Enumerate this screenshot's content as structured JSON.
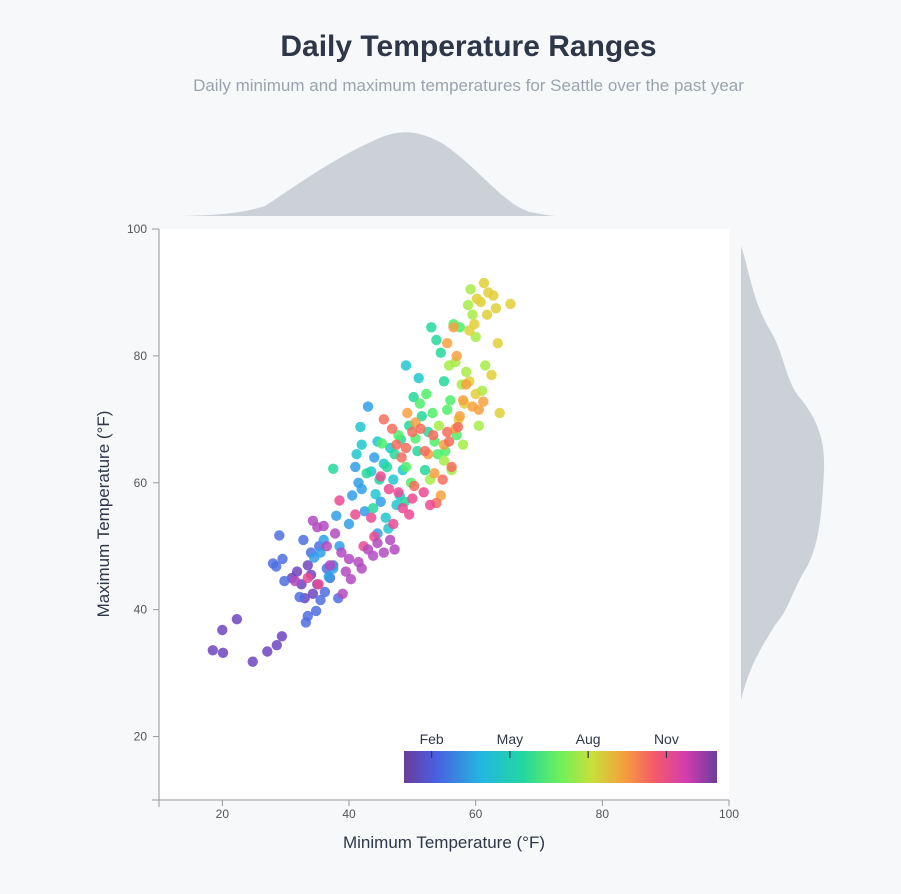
{
  "header": {
    "title": "Daily Temperature Ranges",
    "subtitle": "Daily minimum and maximum temperatures for Seattle over the past year"
  },
  "colors": {
    "background": "#f7f8fa",
    "plot_background": "#ffffff",
    "density": "#cbd1d7",
    "axis": "#999999"
  },
  "color_legend": {
    "scale": "month-of-year (cyclic rainbow)",
    "labels": [
      "Feb",
      "May",
      "Aug",
      "Nov"
    ]
  },
  "chart_data": {
    "type": "scatter",
    "title": "Daily Temperature Ranges",
    "subtitle": "Daily minimum and maximum temperatures for Seattle over the past year",
    "xlabel": "Minimum Temperature (°F)",
    "ylabel": "Maximum Temperature (°F)",
    "xlim": [
      10,
      100
    ],
    "ylim": [
      10,
      100
    ],
    "x_ticks": [
      20,
      40,
      60,
      80,
      100
    ],
    "y_ticks": [
      20,
      40,
      60,
      80,
      100
    ],
    "marginal_densities": [
      "top (min temperature)",
      "right (max temperature)"
    ],
    "color_encoding": "month",
    "grid": false,
    "points": [
      {
        "x": 18.5,
        "y": 33.6,
        "month": 1
      },
      {
        "x": 20.1,
        "y": 33.2,
        "month": 1
      },
      {
        "x": 20.0,
        "y": 36.8,
        "month": 1
      },
      {
        "x": 22.3,
        "y": 38.5,
        "month": 1
      },
      {
        "x": 24.8,
        "y": 31.8,
        "month": 1
      },
      {
        "x": 27.1,
        "y": 33.4,
        "month": 1
      },
      {
        "x": 28.6,
        "y": 34.4,
        "month": 1
      },
      {
        "x": 29.4,
        "y": 35.8,
        "month": 1
      },
      {
        "x": 31.0,
        "y": 45.0,
        "month": 1
      },
      {
        "x": 31.8,
        "y": 46.0,
        "month": 1
      },
      {
        "x": 32.5,
        "y": 44.0,
        "month": 1
      },
      {
        "x": 33.5,
        "y": 47.0,
        "month": 1
      },
      {
        "x": 34.0,
        "y": 45.5,
        "month": 1
      },
      {
        "x": 35.0,
        "y": 44.0,
        "month": 1
      },
      {
        "x": 33.0,
        "y": 41.8,
        "month": 1
      },
      {
        "x": 34.3,
        "y": 42.5,
        "month": 1
      },
      {
        "x": 28.0,
        "y": 47.3,
        "month": 2
      },
      {
        "x": 28.5,
        "y": 46.8,
        "month": 2
      },
      {
        "x": 29.0,
        "y": 51.7,
        "month": 2
      },
      {
        "x": 29.5,
        "y": 48.0,
        "month": 2
      },
      {
        "x": 29.8,
        "y": 44.5,
        "month": 2
      },
      {
        "x": 32.2,
        "y": 42.0,
        "month": 2
      },
      {
        "x": 33.2,
        "y": 38.0,
        "month": 2
      },
      {
        "x": 33.5,
        "y": 39.0,
        "month": 2
      },
      {
        "x": 34.8,
        "y": 39.8,
        "month": 2
      },
      {
        "x": 35.5,
        "y": 41.5,
        "month": 2
      },
      {
        "x": 36.2,
        "y": 42.8,
        "month": 2
      },
      {
        "x": 37.0,
        "y": 45.0,
        "month": 2
      },
      {
        "x": 37.5,
        "y": 47.0,
        "month": 2
      },
      {
        "x": 38.3,
        "y": 41.8,
        "month": 2
      },
      {
        "x": 32.8,
        "y": 51.0,
        "month": 2
      },
      {
        "x": 34.0,
        "y": 49.0,
        "month": 2
      },
      {
        "x": 35.3,
        "y": 50.0,
        "month": 2
      },
      {
        "x": 36.5,
        "y": 46.5,
        "month": 2
      },
      {
        "x": 34.5,
        "y": 48.2,
        "month": 3
      },
      {
        "x": 35.5,
        "y": 49.0,
        "month": 3
      },
      {
        "x": 36.0,
        "y": 51.0,
        "month": 3
      },
      {
        "x": 37.5,
        "y": 46.5,
        "month": 3
      },
      {
        "x": 38.0,
        "y": 54.8,
        "month": 3
      },
      {
        "x": 40.5,
        "y": 58.0,
        "month": 3
      },
      {
        "x": 41.0,
        "y": 62.5,
        "month": 3
      },
      {
        "x": 43.0,
        "y": 72.0,
        "month": 3
      },
      {
        "x": 44.0,
        "y": 64.0,
        "month": 3
      },
      {
        "x": 45.0,
        "y": 57.0,
        "month": 3
      },
      {
        "x": 42.0,
        "y": 59.0,
        "month": 3
      },
      {
        "x": 38.5,
        "y": 50.0,
        "month": 3
      },
      {
        "x": 40.0,
        "y": 53.5,
        "month": 3
      },
      {
        "x": 42.5,
        "y": 55.5,
        "month": 3
      },
      {
        "x": 44.5,
        "y": 52.0,
        "month": 3
      },
      {
        "x": 36.8,
        "y": 45.2,
        "month": 3
      },
      {
        "x": 41.5,
        "y": 60.0,
        "month": 3
      },
      {
        "x": 41.2,
        "y": 64.5,
        "month": 4
      },
      {
        "x": 42.0,
        "y": 66.0,
        "month": 4
      },
      {
        "x": 43.5,
        "y": 61.8,
        "month": 4
      },
      {
        "x": 44.5,
        "y": 66.5,
        "month": 4
      },
      {
        "x": 45.5,
        "y": 63.0,
        "month": 4
      },
      {
        "x": 46.5,
        "y": 65.5,
        "month": 4
      },
      {
        "x": 47.0,
        "y": 60.5,
        "month": 4
      },
      {
        "x": 48.0,
        "y": 58.0,
        "month": 4
      },
      {
        "x": 49.0,
        "y": 78.5,
        "month": 4
      },
      {
        "x": 51.0,
        "y": 76.5,
        "month": 4
      },
      {
        "x": 41.8,
        "y": 68.8,
        "month": 4
      },
      {
        "x": 44.2,
        "y": 58.2,
        "month": 4
      },
      {
        "x": 45.8,
        "y": 54.5,
        "month": 4
      },
      {
        "x": 46.2,
        "y": 52.8,
        "month": 4
      },
      {
        "x": 47.5,
        "y": 56.5,
        "month": 4
      },
      {
        "x": 48.5,
        "y": 62.0,
        "month": 4
      },
      {
        "x": 37.5,
        "y": 62.2,
        "month": 5
      },
      {
        "x": 42.8,
        "y": 61.5,
        "month": 5
      },
      {
        "x": 43.8,
        "y": 56.0,
        "month": 5
      },
      {
        "x": 44.8,
        "y": 60.5,
        "month": 5
      },
      {
        "x": 46.0,
        "y": 62.5,
        "month": 5
      },
      {
        "x": 47.2,
        "y": 64.5,
        "month": 5
      },
      {
        "x": 48.2,
        "y": 66.8,
        "month": 5
      },
      {
        "x": 49.5,
        "y": 69.0,
        "month": 5
      },
      {
        "x": 50.2,
        "y": 73.5,
        "month": 5
      },
      {
        "x": 51.5,
        "y": 70.5,
        "month": 5
      },
      {
        "x": 52.5,
        "y": 68.0,
        "month": 5
      },
      {
        "x": 53.0,
        "y": 84.5,
        "month": 5
      },
      {
        "x": 53.8,
        "y": 82.5,
        "month": 5
      },
      {
        "x": 54.5,
        "y": 80.5,
        "month": 5
      },
      {
        "x": 55.0,
        "y": 76.0,
        "month": 5
      },
      {
        "x": 50.8,
        "y": 65.0,
        "month": 5
      },
      {
        "x": 52.0,
        "y": 62.0,
        "month": 5
      },
      {
        "x": 48.8,
        "y": 57.0,
        "month": 5
      },
      {
        "x": 45.2,
        "y": 66.2,
        "month": 6
      },
      {
        "x": 47.8,
        "y": 67.5,
        "month": 6
      },
      {
        "x": 49.0,
        "y": 62.5,
        "month": 6
      },
      {
        "x": 49.8,
        "y": 60.0,
        "month": 6
      },
      {
        "x": 50.5,
        "y": 67.0,
        "month": 6
      },
      {
        "x": 51.2,
        "y": 72.5,
        "month": 6
      },
      {
        "x": 52.2,
        "y": 74.0,
        "month": 6
      },
      {
        "x": 53.2,
        "y": 71.0,
        "month": 6
      },
      {
        "x": 54.0,
        "y": 64.5,
        "month": 6
      },
      {
        "x": 55.5,
        "y": 71.5,
        "month": 6
      },
      {
        "x": 56.0,
        "y": 73.0,
        "month": 6
      },
      {
        "x": 57.0,
        "y": 67.5,
        "month": 6
      },
      {
        "x": 56.5,
        "y": 85.0,
        "month": 6
      },
      {
        "x": 57.5,
        "y": 84.5,
        "month": 6
      },
      {
        "x": 53.5,
        "y": 66.5,
        "month": 6
      },
      {
        "x": 55.2,
        "y": 65.0,
        "month": 6
      },
      {
        "x": 52.8,
        "y": 60.5,
        "month": 7
      },
      {
        "x": 54.2,
        "y": 69.0,
        "month": 7
      },
      {
        "x": 55.8,
        "y": 78.5,
        "month": 7
      },
      {
        "x": 56.8,
        "y": 79.0,
        "month": 7
      },
      {
        "x": 57.8,
        "y": 75.5,
        "month": 7
      },
      {
        "x": 58.5,
        "y": 77.5,
        "month": 7
      },
      {
        "x": 58.8,
        "y": 88.0,
        "month": 7
      },
      {
        "x": 59.2,
        "y": 90.5,
        "month": 7
      },
      {
        "x": 60.0,
        "y": 83.0,
        "month": 7
      },
      {
        "x": 60.5,
        "y": 69.0,
        "month": 7
      },
      {
        "x": 61.0,
        "y": 74.5,
        "month": 7
      },
      {
        "x": 61.5,
        "y": 78.5,
        "month": 7
      },
      {
        "x": 55.0,
        "y": 63.5,
        "month": 7
      },
      {
        "x": 58.0,
        "y": 66.0,
        "month": 7
      },
      {
        "x": 59.5,
        "y": 86.5,
        "month": 7
      },
      {
        "x": 56.2,
        "y": 62.0,
        "month": 7
      },
      {
        "x": 57.3,
        "y": 70.0,
        "month": 8
      },
      {
        "x": 58.2,
        "y": 72.5,
        "month": 8
      },
      {
        "x": 59.0,
        "y": 84.0,
        "month": 8
      },
      {
        "x": 59.8,
        "y": 85.0,
        "month": 8
      },
      {
        "x": 60.2,
        "y": 89.0,
        "month": 8
      },
      {
        "x": 60.8,
        "y": 88.5,
        "month": 8
      },
      {
        "x": 61.3,
        "y": 91.5,
        "month": 8
      },
      {
        "x": 62.0,
        "y": 90.0,
        "month": 8
      },
      {
        "x": 62.8,
        "y": 89.5,
        "month": 8
      },
      {
        "x": 63.2,
        "y": 87.5,
        "month": 8
      },
      {
        "x": 63.5,
        "y": 82.0,
        "month": 8
      },
      {
        "x": 63.8,
        "y": 71.0,
        "month": 8
      },
      {
        "x": 65.5,
        "y": 88.2,
        "month": 8
      },
      {
        "x": 61.8,
        "y": 86.5,
        "month": 8
      },
      {
        "x": 60.0,
        "y": 74.0,
        "month": 8
      },
      {
        "x": 59.0,
        "y": 76.0,
        "month": 8
      },
      {
        "x": 62.5,
        "y": 77.0,
        "month": 8
      },
      {
        "x": 55.5,
        "y": 82.0,
        "month": 9
      },
      {
        "x": 56.5,
        "y": 84.5,
        "month": 9
      },
      {
        "x": 57.0,
        "y": 80.0,
        "month": 9
      },
      {
        "x": 58.0,
        "y": 73.0,
        "month": 9
      },
      {
        "x": 58.5,
        "y": 75.5,
        "month": 9
      },
      {
        "x": 59.5,
        "y": 72.0,
        "month": 9
      },
      {
        "x": 60.5,
        "y": 71.5,
        "month": 9
      },
      {
        "x": 61.2,
        "y": 72.8,
        "month": 9
      },
      {
        "x": 57.5,
        "y": 70.5,
        "month": 9
      },
      {
        "x": 56.8,
        "y": 68.5,
        "month": 9
      },
      {
        "x": 55.0,
        "y": 66.0,
        "month": 9
      },
      {
        "x": 53.5,
        "y": 61.5,
        "month": 9
      },
      {
        "x": 52.5,
        "y": 64.5,
        "month": 9
      },
      {
        "x": 54.5,
        "y": 58.0,
        "month": 9
      },
      {
        "x": 50.5,
        "y": 69.5,
        "month": 9
      },
      {
        "x": 49.2,
        "y": 71.0,
        "month": 9
      },
      {
        "x": 45.5,
        "y": 70.0,
        "month": 10
      },
      {
        "x": 46.8,
        "y": 68.5,
        "month": 10
      },
      {
        "x": 47.5,
        "y": 66.0,
        "month": 10
      },
      {
        "x": 48.3,
        "y": 64.0,
        "month": 10
      },
      {
        "x": 49.0,
        "y": 65.5,
        "month": 10
      },
      {
        "x": 50.0,
        "y": 68.0,
        "month": 10
      },
      {
        "x": 51.3,
        "y": 68.5,
        "month": 10
      },
      {
        "x": 52.0,
        "y": 65.0,
        "month": 10
      },
      {
        "x": 53.3,
        "y": 67.5,
        "month": 10
      },
      {
        "x": 55.5,
        "y": 68.0,
        "month": 10
      },
      {
        "x": 57.2,
        "y": 68.8,
        "month": 10
      },
      {
        "x": 56.2,
        "y": 62.5,
        "month": 10
      },
      {
        "x": 55.8,
        "y": 66.5,
        "month": 10
      },
      {
        "x": 54.8,
        "y": 60.5,
        "month": 10
      },
      {
        "x": 53.8,
        "y": 56.8,
        "month": 10
      },
      {
        "x": 50.3,
        "y": 59.5,
        "month": 10
      },
      {
        "x": 38.5,
        "y": 57.2,
        "month": 11
      },
      {
        "x": 41.0,
        "y": 55.0,
        "month": 11
      },
      {
        "x": 43.5,
        "y": 54.5,
        "month": 11
      },
      {
        "x": 45.0,
        "y": 61.0,
        "month": 11
      },
      {
        "x": 46.3,
        "y": 59.0,
        "month": 11
      },
      {
        "x": 47.8,
        "y": 58.5,
        "month": 11
      },
      {
        "x": 48.5,
        "y": 56.0,
        "month": 11
      },
      {
        "x": 49.5,
        "y": 55.0,
        "month": 11
      },
      {
        "x": 50.0,
        "y": 57.5,
        "month": 11
      },
      {
        "x": 51.8,
        "y": 58.5,
        "month": 11
      },
      {
        "x": 52.8,
        "y": 56.5,
        "month": 11
      },
      {
        "x": 47.0,
        "y": 53.5,
        "month": 11
      },
      {
        "x": 44.0,
        "y": 51.5,
        "month": 11
      },
      {
        "x": 42.3,
        "y": 50.0,
        "month": 11
      },
      {
        "x": 33.5,
        "y": 45.0,
        "month": 11
      },
      {
        "x": 35.2,
        "y": 44.0,
        "month": 11
      },
      {
        "x": 31.5,
        "y": 44.5,
        "month": 12
      },
      {
        "x": 34.3,
        "y": 54.0,
        "month": 12
      },
      {
        "x": 35.0,
        "y": 53.0,
        "month": 12
      },
      {
        "x": 36.0,
        "y": 53.2,
        "month": 12
      },
      {
        "x": 37.8,
        "y": 52.0,
        "month": 12
      },
      {
        "x": 38.8,
        "y": 49.0,
        "month": 12
      },
      {
        "x": 39.0,
        "y": 42.5,
        "month": 12
      },
      {
        "x": 39.5,
        "y": 46.0,
        "month": 12
      },
      {
        "x": 40.3,
        "y": 44.8,
        "month": 12
      },
      {
        "x": 41.5,
        "y": 47.5,
        "month": 12
      },
      {
        "x": 42.0,
        "y": 46.5,
        "month": 12
      },
      {
        "x": 43.0,
        "y": 49.5,
        "month": 12
      },
      {
        "x": 43.8,
        "y": 48.5,
        "month": 12
      },
      {
        "x": 44.5,
        "y": 50.5,
        "month": 12
      },
      {
        "x": 45.5,
        "y": 49.0,
        "month": 12
      },
      {
        "x": 46.5,
        "y": 51.0,
        "month": 12
      },
      {
        "x": 47.2,
        "y": 49.5,
        "month": 12
      },
      {
        "x": 40.0,
        "y": 48.0,
        "month": 12
      },
      {
        "x": 37.0,
        "y": 47.0,
        "month": 12
      },
      {
        "x": 36.5,
        "y": 50.0,
        "month": 12
      }
    ]
  }
}
